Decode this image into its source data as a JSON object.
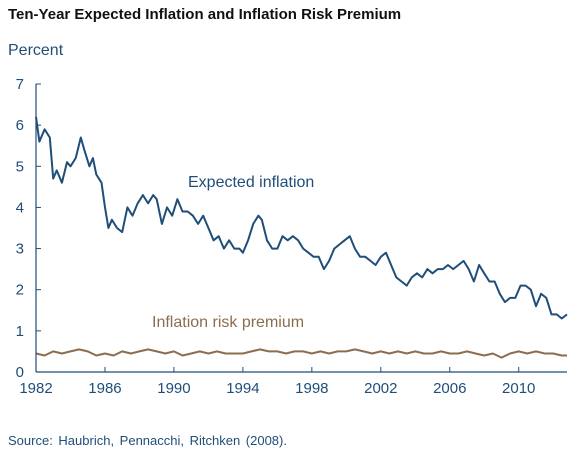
{
  "chart_data": {
    "type": "line",
    "title": "Ten-Year Expected Inflation and Inflation Risk Premium",
    "ylabel": "Percent",
    "xlabel": "",
    "ylim": [
      0,
      7
    ],
    "xlim": [
      1982,
      2012.8
    ],
    "yticks": [
      "0",
      "1",
      "2",
      "3",
      "4",
      "5",
      "6",
      "7"
    ],
    "xticks": [
      "1982",
      "1986",
      "1990",
      "1994",
      "1998",
      "2002",
      "2006",
      "2010"
    ],
    "grid": false,
    "series": [
      {
        "name": "Expected inflation",
        "color": "#1f4e79",
        "x": [
          1982.0,
          1982.2,
          1982.5,
          1982.8,
          1983.0,
          1983.2,
          1983.5,
          1983.8,
          1984.0,
          1984.3,
          1984.6,
          1984.8,
          1985.1,
          1985.3,
          1985.5,
          1985.8,
          1986.0,
          1986.2,
          1986.4,
          1986.7,
          1987.0,
          1987.3,
          1987.6,
          1987.9,
          1988.2,
          1988.5,
          1988.8,
          1989.0,
          1989.3,
          1989.6,
          1989.9,
          1990.2,
          1990.5,
          1990.8,
          1991.1,
          1991.4,
          1991.7,
          1992.0,
          1992.3,
          1992.6,
          1992.9,
          1993.2,
          1993.5,
          1993.8,
          1994.0,
          1994.3,
          1994.6,
          1994.9,
          1995.1,
          1995.4,
          1995.7,
          1996.0,
          1996.3,
          1996.6,
          1996.9,
          1997.2,
          1997.5,
          1997.8,
          1998.1,
          1998.4,
          1998.7,
          1999.0,
          1999.3,
          1999.6,
          1999.9,
          2000.2,
          2000.5,
          2000.8,
          2001.1,
          2001.4,
          2001.7,
          2002.0,
          2002.3,
          2002.6,
          2002.9,
          2003.2,
          2003.5,
          2003.8,
          2004.1,
          2004.4,
          2004.7,
          2005.0,
          2005.3,
          2005.6,
          2005.9,
          2006.2,
          2006.5,
          2006.8,
          2007.1,
          2007.4,
          2007.7,
          2008.0,
          2008.3,
          2008.6,
          2008.9,
          2009.2,
          2009.5,
          2009.8,
          2010.1,
          2010.4,
          2010.7,
          2011.0,
          2011.3,
          2011.6,
          2011.9,
          2012.2,
          2012.5,
          2012.8
        ],
        "values": [
          6.2,
          5.6,
          5.9,
          5.7,
          4.7,
          4.9,
          4.6,
          5.1,
          5.0,
          5.2,
          5.7,
          5.4,
          5.0,
          5.2,
          4.8,
          4.6,
          4.0,
          3.5,
          3.7,
          3.5,
          3.4,
          4.0,
          3.8,
          4.1,
          4.3,
          4.1,
          4.3,
          4.2,
          3.6,
          4.0,
          3.8,
          4.2,
          3.9,
          3.9,
          3.8,
          3.6,
          3.8,
          3.5,
          3.2,
          3.3,
          3.0,
          3.2,
          3.0,
          3.0,
          2.9,
          3.2,
          3.6,
          3.8,
          3.7,
          3.2,
          3.0,
          3.0,
          3.3,
          3.2,
          3.3,
          3.2,
          3.0,
          2.9,
          2.8,
          2.8,
          2.5,
          2.7,
          3.0,
          3.1,
          3.2,
          3.3,
          3.0,
          2.8,
          2.8,
          2.7,
          2.6,
          2.8,
          2.9,
          2.6,
          2.3,
          2.2,
          2.1,
          2.3,
          2.4,
          2.3,
          2.5,
          2.4,
          2.5,
          2.5,
          2.6,
          2.5,
          2.6,
          2.7,
          2.5,
          2.2,
          2.6,
          2.4,
          2.2,
          2.2,
          1.9,
          1.7,
          1.8,
          1.8,
          2.1,
          2.1,
          2.0,
          1.6,
          1.9,
          1.8,
          1.4,
          1.4,
          1.3,
          1.4
        ]
      },
      {
        "name": "Inflation risk premium",
        "color": "#8c6d4f",
        "x": [
          1982.0,
          1982.5,
          1983.0,
          1983.5,
          1984.0,
          1984.5,
          1985.0,
          1985.5,
          1986.0,
          1986.5,
          1987.0,
          1987.5,
          1988.0,
          1988.5,
          1989.0,
          1989.5,
          1990.0,
          1990.5,
          1991.0,
          1991.5,
          1992.0,
          1992.5,
          1993.0,
          1993.5,
          1994.0,
          1994.5,
          1995.0,
          1995.5,
          1996.0,
          1996.5,
          1997.0,
          1997.5,
          1998.0,
          1998.5,
          1999.0,
          1999.5,
          2000.0,
          2000.5,
          2001.0,
          2001.5,
          2002.0,
          2002.5,
          2003.0,
          2003.5,
          2004.0,
          2004.5,
          2005.0,
          2005.5,
          2006.0,
          2006.5,
          2007.0,
          2007.5,
          2008.0,
          2008.5,
          2009.0,
          2009.5,
          2010.0,
          2010.5,
          2011.0,
          2011.5,
          2012.0,
          2012.5,
          2012.8
        ],
        "values": [
          0.45,
          0.4,
          0.5,
          0.45,
          0.5,
          0.55,
          0.5,
          0.4,
          0.45,
          0.4,
          0.5,
          0.45,
          0.5,
          0.55,
          0.5,
          0.45,
          0.5,
          0.4,
          0.45,
          0.5,
          0.45,
          0.5,
          0.45,
          0.45,
          0.45,
          0.5,
          0.55,
          0.5,
          0.5,
          0.45,
          0.5,
          0.5,
          0.45,
          0.5,
          0.45,
          0.5,
          0.5,
          0.55,
          0.5,
          0.45,
          0.5,
          0.45,
          0.5,
          0.45,
          0.5,
          0.45,
          0.45,
          0.5,
          0.45,
          0.45,
          0.5,
          0.45,
          0.4,
          0.45,
          0.35,
          0.45,
          0.5,
          0.45,
          0.5,
          0.45,
          0.45,
          0.4,
          0.4
        ]
      }
    ],
    "axis_color": "#1f4e79",
    "text_color": "#1f4e79",
    "source": "Source: Haubrich,  Pennacchi,  Ritchken  (2008)."
  }
}
